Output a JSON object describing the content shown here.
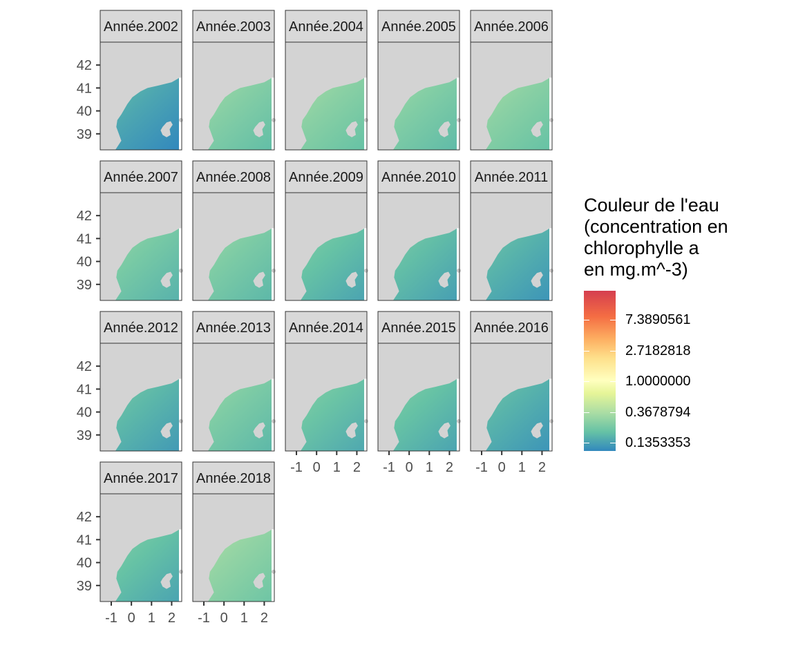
{
  "chart_data": {
    "type": "heatmap",
    "facet_prefix": "Année.",
    "facets": [
      "2002",
      "2003",
      "2004",
      "2005",
      "2006",
      "2007",
      "2008",
      "2009",
      "2010",
      "2011",
      "2012",
      "2013",
      "2014",
      "2015",
      "2016",
      "2017",
      "2018"
    ],
    "facet_mean_chl": [
      0.18,
      0.42,
      0.45,
      0.4,
      0.45,
      0.35,
      0.38,
      0.28,
      0.26,
      0.22,
      0.24,
      0.38,
      0.3,
      0.28,
      0.22,
      0.28,
      0.5
    ],
    "y_ticks": [
      "42",
      "41",
      "40",
      "39"
    ],
    "y_tick_values": [
      42,
      41,
      40,
      39
    ],
    "x_ticks": [
      "-1",
      "0",
      "1",
      "2"
    ],
    "x_tick_values": [
      -1,
      0,
      1,
      2
    ],
    "xlim": [
      -1.55,
      2.5
    ],
    "ylim": [
      38.3,
      43.0
    ],
    "colormap": [
      "#3288bd",
      "#66c2a5",
      "#abdda4",
      "#e6f598",
      "#ffffbf",
      "#fee08b",
      "#fdae61",
      "#f46d43",
      "#d53e4f"
    ],
    "land_color": "#d3d3d3",
    "legend": {
      "title_lines": [
        "Couleur de l'eau",
        "(concentration en",
        "chlorophylle a",
        "en mg.m^-3)"
      ],
      "labels": [
        "7.3890561",
        "2.7182818",
        "1.0000000",
        "0.3678794",
        "0.1353353"
      ],
      "values": [
        7.3890561,
        2.7182818,
        1.0,
        0.3678794,
        0.1353353
      ],
      "placement": "right"
    }
  }
}
